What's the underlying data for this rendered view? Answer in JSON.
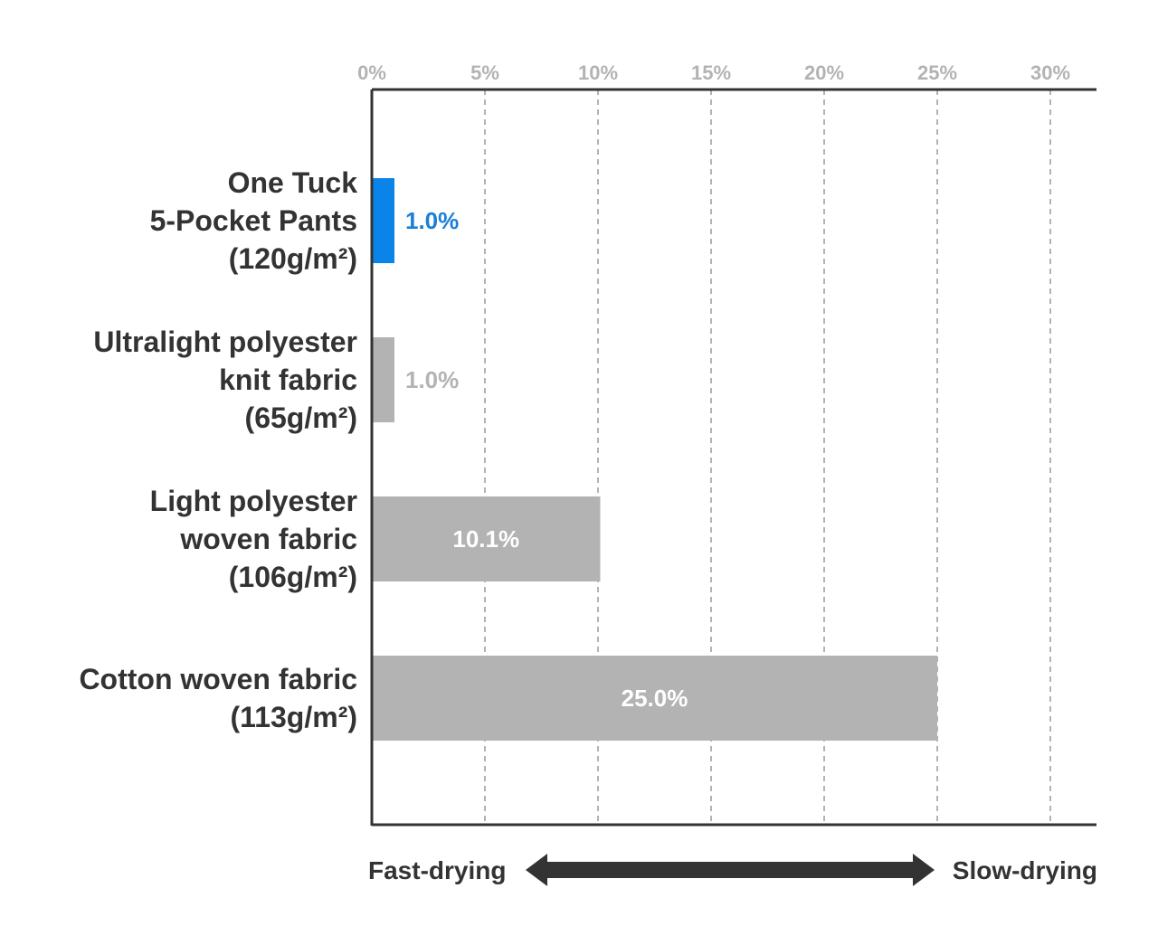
{
  "chart_data": {
    "type": "bar",
    "orientation": "horizontal",
    "categories": [
      [
        "One Tuck",
        "5-Pocket Pants",
        "(120g/m²)"
      ],
      [
        "Ultralight polyester",
        "knit fabric",
        "(65g/m²)"
      ],
      [
        "Light polyester",
        "woven fabric",
        "(106g/m²)"
      ],
      [
        "Cotton woven fabric",
        "(113g/m²)"
      ]
    ],
    "values": [
      1.0,
      1.0,
      10.1,
      25.0
    ],
    "value_labels": [
      "1.0%",
      "1.0%",
      "10.1%",
      "25.0%"
    ],
    "value_label_position": [
      "outside",
      "outside",
      "inside",
      "inside"
    ],
    "bar_colors": [
      "#0a84e8",
      "#b3b3b3",
      "#b3b3b3",
      "#b3b3b3"
    ],
    "label_colors": [
      "#1a7fd9",
      "#b3b3b3",
      "#ffffff",
      "#ffffff"
    ],
    "xlim": [
      0,
      30
    ],
    "xticks": [
      0,
      5,
      10,
      15,
      20,
      25,
      30
    ],
    "xtick_labels": [
      "0%",
      "5%",
      "10%",
      "15%",
      "20%",
      "25%",
      "30%"
    ],
    "x_axis_position": "top",
    "grid": "dashed vertical",
    "title": "",
    "xlabel": "",
    "ylabel": ""
  },
  "annotation": {
    "left_label": "Fast-drying",
    "right_label": "Slow-drying",
    "arrow": "double-headed"
  },
  "colors": {
    "highlight": "#0a84e8",
    "bar": "#b3b3b3",
    "axis": "#333333",
    "grid": "#b3b3b3",
    "text": "#333333"
  }
}
